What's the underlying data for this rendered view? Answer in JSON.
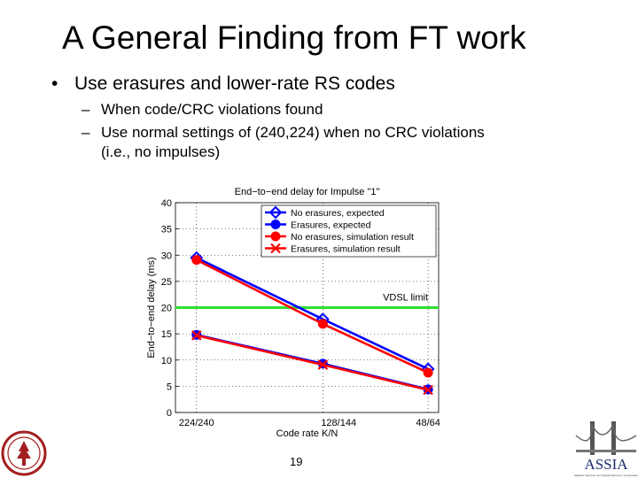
{
  "slide": {
    "title": "A General Finding from FT work",
    "bullet": "Use erasures and lower-rate RS codes",
    "subbullets": [
      "When code/CRC violations found",
      "Use normal settings of (240,224) when no CRC violations",
      "(i.e., no impulses)"
    ],
    "page_number": "19"
  },
  "logos": {
    "right_text": "ASSIA",
    "right_subtext": "Adaptive Spectrum and Signal Alignment, Incorporated"
  },
  "chart_data": {
    "type": "line",
    "title": "End−to−end delay for Impulse \"1\"",
    "xlabel": "Code rate K/N",
    "ylabel": "End−to−end delay (ms)",
    "categories": [
      "224/240",
      "128/144",
      "48/64"
    ],
    "x": [
      224,
      128,
      48
    ],
    "ylim": [
      0,
      40
    ],
    "yticks": [
      0,
      5,
      10,
      15,
      20,
      25,
      30,
      35,
      40
    ],
    "grid": true,
    "legend_position": "top-right",
    "series": [
      {
        "name": "No erasures, expected",
        "x": [
          224,
          128,
          48
        ],
        "values": [
          29.5,
          17.8,
          8.3
        ],
        "color": "#0000ff",
        "marker": "diamond"
      },
      {
        "name": "Erasures, expected",
        "x": [
          224,
          128,
          48
        ],
        "values": [
          14.8,
          9.3,
          4.4
        ],
        "color": "#0000ff",
        "marker": "circle"
      },
      {
        "name": "No erasures, simulation result",
        "x": [
          224,
          128,
          48
        ],
        "values": [
          29.1,
          16.9,
          7.6
        ],
        "color": "#ff0000",
        "marker": "circle"
      },
      {
        "name": "Erasures, simulation result",
        "x": [
          224,
          128,
          48
        ],
        "values": [
          14.7,
          9.1,
          4.3
        ],
        "color": "#ff0000",
        "marker": "x"
      }
    ],
    "reference_line": {
      "label": "VDSL limit",
      "value": 20,
      "color": "#33dd33"
    }
  }
}
